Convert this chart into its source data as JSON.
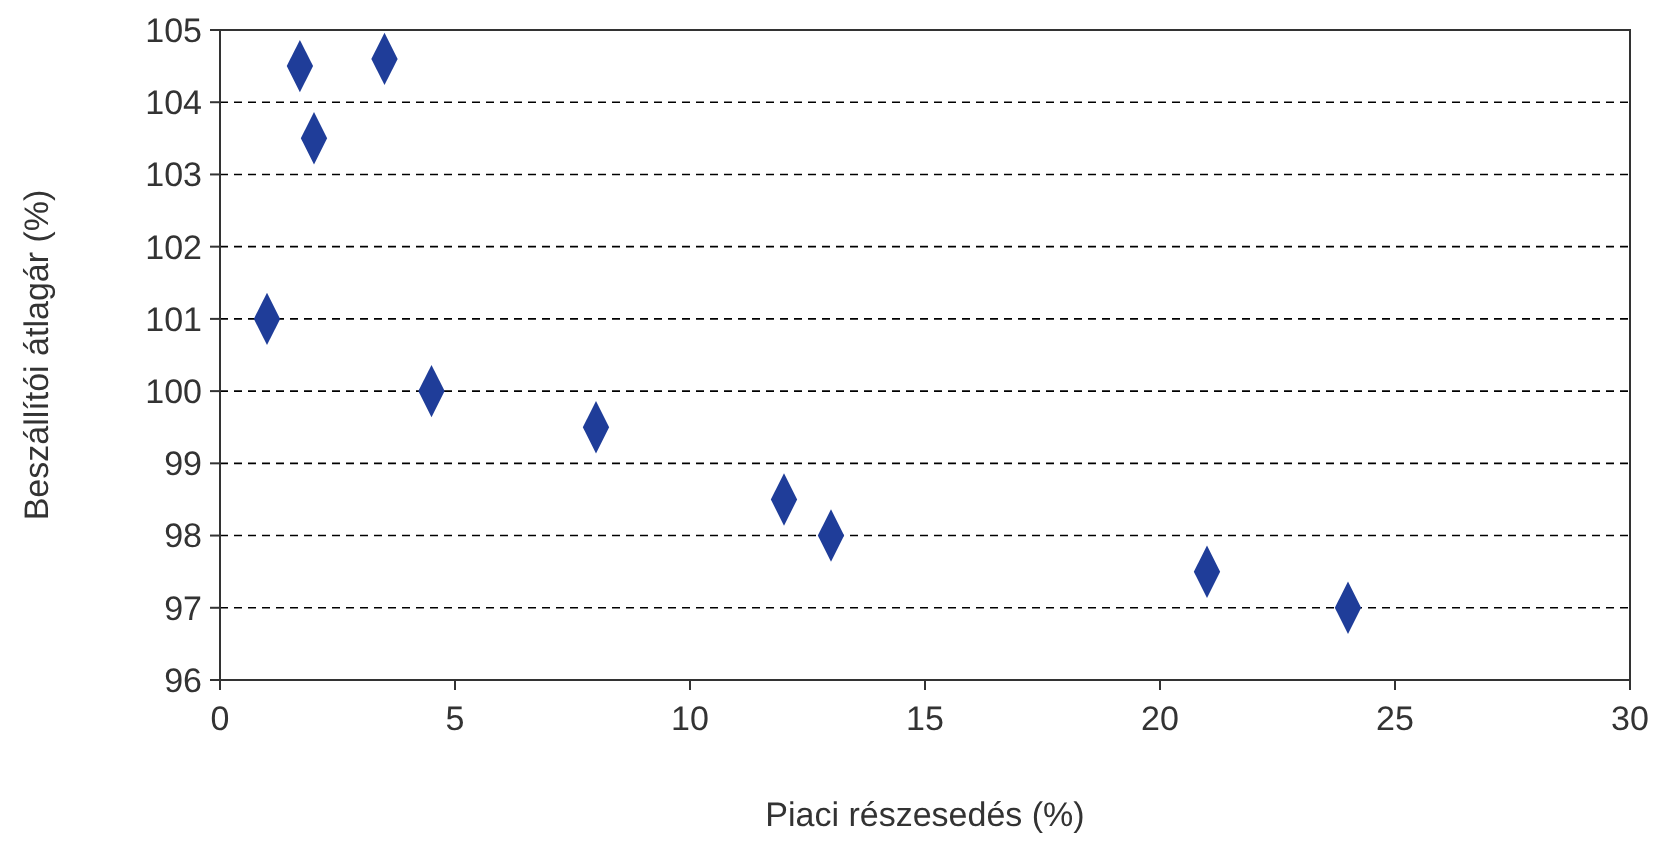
{
  "chart_data": {
    "type": "scatter",
    "xlabel": "Piaci részesedés (%)",
    "ylabel": "Beszállítói átlagár (%)",
    "x": [
      1.7,
      3.5,
      2,
      1,
      4.5,
      8,
      12,
      13,
      21,
      24
    ],
    "values": [
      104.5,
      104.6,
      103.5,
      101,
      100,
      99.5,
      98.5,
      98,
      97.5,
      97
    ],
    "color": "#1f3d99",
    "marker": "diamond",
    "grid": "y",
    "line_style": "dashed",
    "xlim": [
      0,
      30
    ],
    "xticks": [
      0,
      5,
      10,
      15,
      20,
      25,
      30
    ],
    "ylim": [
      96,
      105
    ],
    "yticks": [
      96,
      97,
      98,
      99,
      100,
      101,
      102,
      103,
      104,
      105
    ]
  }
}
